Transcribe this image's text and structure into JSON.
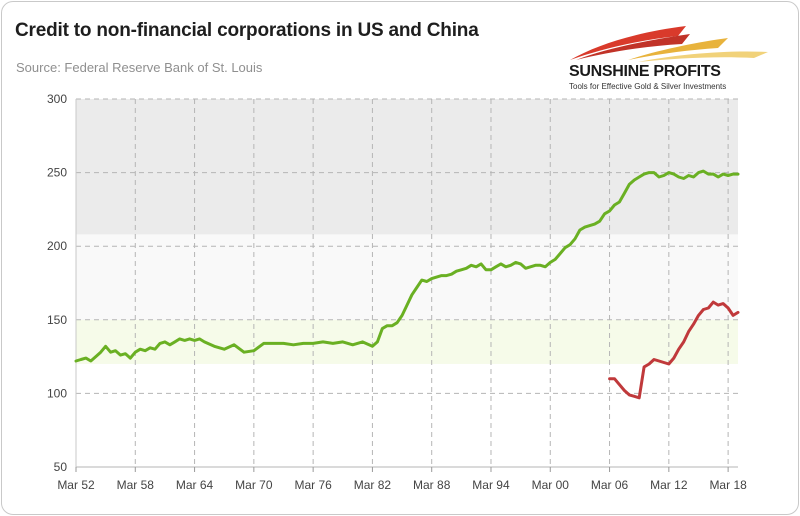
{
  "header": {
    "title": "Credit to non-financial corporations in US and China",
    "source": "Source: Federal Reserve Bank of St. Louis"
  },
  "logo": {
    "name": "SUNSHINE PROFITS",
    "tagline": "Tools for Effective Gold & Silver Investments"
  },
  "colors": {
    "us_line": "#6ab023",
    "china_line": "#c0393b",
    "grid": "#b5b5b5",
    "band_top": "#ebebeb",
    "band_green": "#f6fbe9"
  },
  "chart_data": {
    "type": "line",
    "title": "Credit to non-financial corporations in US and China",
    "xlabel": "",
    "ylabel": "",
    "xlim": [
      1952,
      2019
    ],
    "ylim": [
      50,
      300
    ],
    "y_ticks": [
      "300",
      "250",
      "200",
      "150",
      "100",
      "50"
    ],
    "x_ticks": [
      "Mar 52",
      "Mar 58",
      "Mar 64",
      "Mar 70",
      "Mar 76",
      "Mar 82",
      "Mar 88",
      "Mar 94",
      "Mar 00",
      "Mar 06",
      "Mar 12",
      "Mar 18"
    ],
    "grid": true,
    "legend": "none",
    "series": [
      {
        "color": "#6ab023",
        "x": [
          1952.0,
          1952.5,
          1953.0,
          1953.5,
          1954.0,
          1954.5,
          1955.0,
          1955.5,
          1956.0,
          1956.5,
          1957.0,
          1957.5,
          1958.0,
          1958.5,
          1959.0,
          1959.5,
          1960.0,
          1960.5,
          1961.0,
          1961.5,
          1962.0,
          1962.5,
          1963.0,
          1963.5,
          1964.0,
          1964.5,
          1965.0,
          1966.0,
          1967.0,
          1968.0,
          1969.0,
          1970.0,
          1971.0,
          1972.0,
          1973.0,
          1974.0,
          1975.0,
          1976.0,
          1977.0,
          1978.0,
          1979.0,
          1980.0,
          1981.0,
          1982.0,
          1982.5,
          1983.0,
          1983.5,
          1984.0,
          1984.5,
          1985.0,
          1985.5,
          1986.0,
          1986.5,
          1987.0,
          1987.5,
          1988.0,
          1988.5,
          1989.0,
          1989.5,
          1990.0,
          1990.5,
          1991.0,
          1991.5,
          1992.0,
          1992.5,
          1993.0,
          1993.5,
          1994.0,
          1994.5,
          1995.0,
          1995.5,
          1996.0,
          1996.5,
          1997.0,
          1997.5,
          1998.0,
          1998.5,
          1999.0,
          1999.5,
          2000.0,
          2000.5,
          2001.0,
          2001.5,
          2002.0,
          2002.5,
          2003.0,
          2003.5,
          2004.0,
          2004.5,
          2005.0,
          2005.5,
          2006.0,
          2006.5,
          2007.0,
          2007.5,
          2008.0,
          2008.5,
          2009.0,
          2009.5,
          2010.0,
          2010.5,
          2011.0,
          2011.5,
          2012.0,
          2012.5,
          2013.0,
          2013.5,
          2014.0,
          2014.5,
          2015.0,
          2015.5,
          2016.0,
          2016.5,
          2017.0,
          2017.5,
          2018.0,
          2018.5,
          2019.0
        ],
        "values": [
          122,
          123,
          124,
          122,
          125,
          128,
          132,
          128,
          129,
          126,
          127,
          124,
          128,
          130,
          129,
          131,
          130,
          134,
          135,
          133,
          135,
          137,
          136,
          137,
          136,
          137,
          135,
          132,
          130,
          133,
          128,
          129,
          134,
          134,
          134,
          133,
          134,
          134,
          135,
          134,
          135,
          133,
          135,
          132,
          135,
          144,
          146,
          146,
          148,
          153,
          160,
          167,
          172,
          177,
          176,
          178,
          179,
          180,
          180,
          181,
          183,
          184,
          185,
          187,
          186,
          188,
          184,
          184,
          186,
          188,
          186,
          187,
          189,
          188,
          185,
          186,
          187,
          187,
          186,
          189,
          191,
          195,
          199,
          201,
          205,
          211,
          213,
          214,
          215,
          217,
          222,
          224,
          228,
          230,
          236,
          242,
          245,
          247,
          249,
          250,
          250,
          247,
          248,
          250,
          249,
          247,
          246,
          248,
          247,
          250,
          251,
          249,
          249,
          247,
          249,
          248,
          249,
          249
        ],
        "name": ""
      },
      {
        "color": "#c0393b",
        "x": [
          2006.0,
          2006.5,
          2007.0,
          2007.5,
          2008.0,
          2008.5,
          2009.0,
          2009.5,
          2010.0,
          2010.5,
          2011.0,
          2011.5,
          2012.0,
          2012.5,
          2013.0,
          2013.5,
          2014.0,
          2014.5,
          2015.0,
          2015.5,
          2016.0,
          2016.5,
          2017.0,
          2017.5,
          2018.0,
          2018.5,
          2019.0
        ],
        "values": [
          110,
          110,
          106,
          102,
          99,
          98,
          97,
          118,
          120,
          123,
          122,
          121,
          120,
          124,
          130,
          135,
          142,
          147,
          153,
          157,
          158,
          162,
          160,
          161,
          158,
          153,
          155
        ],
        "name": ""
      }
    ]
  }
}
